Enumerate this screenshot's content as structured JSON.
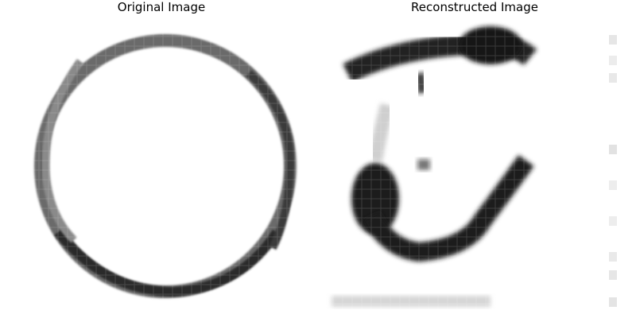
{
  "figure": {
    "left_title": "Original Image",
    "right_title": "Reconstructed Image"
  },
  "colors": {
    "background": "#ffffff",
    "ink": "#111111"
  },
  "images": [
    {
      "name": "original",
      "shape": "ring"
    },
    {
      "name": "reconstructed",
      "shape": "blurry-digit"
    }
  ]
}
